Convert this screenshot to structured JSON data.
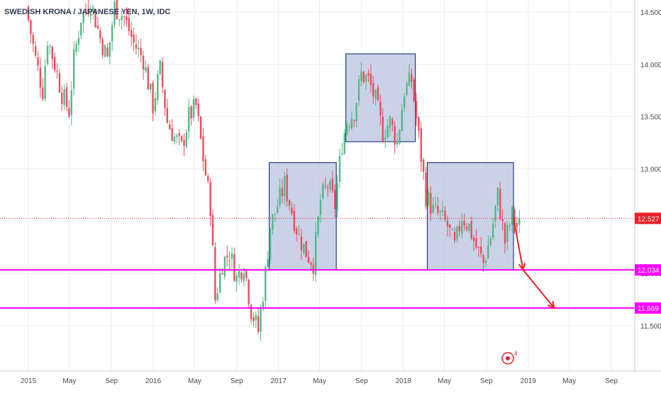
{
  "symbol_title": "SWEDISH KRONA / JAPANESE YEN, 1W, IDC",
  "colors": {
    "up": "#53b987",
    "down": "#eb4d5c",
    "support": "#ff00ff",
    "box_fill": "#b8c3e0",
    "box_stroke": "#2a3f7e",
    "arrow": "#e8202a",
    "grid": "#eaeef3",
    "axis_text": "#4a4a4a",
    "price_line": "#e8202a"
  },
  "chart_data": {
    "type": "candlestick",
    "title": "SWEDISH KRONA / JAPANESE YEN, 1W, IDC",
    "x_axis": {
      "start": "2015-01-01",
      "end": "2019-12-20",
      "tick_labels": [
        {
          "date": "2015-01-01",
          "label": "2015"
        },
        {
          "date": "2015-05-01",
          "label": "May"
        },
        {
          "date": "2015-09-01",
          "label": "Sep"
        },
        {
          "date": "2016-01-01",
          "label": "2016"
        },
        {
          "date": "2016-05-01",
          "label": "May"
        },
        {
          "date": "2016-09-01",
          "label": "Sep"
        },
        {
          "date": "2017-01-01",
          "label": "2017"
        },
        {
          "date": "2017-05-01",
          "label": "May"
        },
        {
          "date": "2017-09-01",
          "label": "Sep"
        },
        {
          "date": "2018-01-01",
          "label": "2018"
        },
        {
          "date": "2018-05-01",
          "label": "May"
        },
        {
          "date": "2018-09-01",
          "label": "Sep"
        },
        {
          "date": "2019-01-01",
          "label": "2019"
        },
        {
          "date": "2019-05-01",
          "label": "May"
        },
        {
          "date": "2019-09-01",
          "label": "Sep"
        }
      ]
    },
    "y_axis": {
      "range": [
        11.14,
        14.6
      ],
      "ticks": [
        "11.500",
        "12.000",
        "12.500",
        "13.000",
        "13.500",
        "14.000",
        "14.500"
      ],
      "tick_values": [
        11.5,
        12.0,
        12.5,
        13.0,
        13.5,
        14.0,
        14.5
      ]
    },
    "grid": true,
    "series": {
      "points": [
        [
          "2014-12-29",
          14.55
        ],
        [
          "2015-01-26",
          14.05
        ],
        [
          "2015-02-16",
          13.75
        ],
        [
          "2015-03-02",
          14.25
        ],
        [
          "2015-03-23",
          14.0
        ],
        [
          "2015-04-13",
          13.72
        ],
        [
          "2015-05-04",
          13.55
        ],
        [
          "2015-05-18",
          14.05
        ],
        [
          "2015-06-08",
          14.45
        ],
        [
          "2015-07-06",
          14.6
        ],
        [
          "2015-08-03",
          14.25
        ],
        [
          "2015-08-24",
          14.05
        ],
        [
          "2015-09-14",
          14.55
        ],
        [
          "2015-10-12",
          14.45
        ],
        [
          "2015-11-09",
          14.2
        ],
        [
          "2015-12-07",
          14.05
        ],
        [
          "2016-01-04",
          13.6
        ],
        [
          "2016-01-25",
          13.95
        ],
        [
          "2016-02-15",
          13.45
        ],
        [
          "2016-03-07",
          13.3
        ],
        [
          "2016-03-28",
          13.2
        ],
        [
          "2016-04-18",
          13.5
        ],
        [
          "2016-05-09",
          13.6
        ],
        [
          "2016-05-30",
          13.1
        ],
        [
          "2016-06-20",
          12.65
        ],
        [
          "2016-07-04",
          11.75
        ],
        [
          "2016-07-25",
          12.1
        ],
        [
          "2016-08-15",
          12.2
        ],
        [
          "2016-09-05",
          11.95
        ],
        [
          "2016-09-26",
          12.1
        ],
        [
          "2016-10-17",
          11.65
        ],
        [
          "2016-11-07",
          11.45
        ],
        [
          "2016-11-28",
          12.0
        ],
        [
          "2016-12-12",
          12.45
        ],
        [
          "2017-01-02",
          12.65
        ],
        [
          "2017-01-23",
          12.85
        ],
        [
          "2017-02-13",
          12.6
        ],
        [
          "2017-03-06",
          12.35
        ],
        [
          "2017-03-27",
          12.2
        ],
        [
          "2017-04-17",
          12.1
        ],
        [
          "2017-05-08",
          12.7
        ],
        [
          "2017-05-29",
          12.85
        ],
        [
          "2017-06-19",
          12.65
        ],
        [
          "2017-07-10",
          13.25
        ],
        [
          "2017-07-24",
          13.45
        ],
        [
          "2017-08-14",
          13.55
        ],
        [
          "2017-09-04",
          13.9
        ],
        [
          "2017-09-25",
          13.85
        ],
        [
          "2017-10-16",
          13.65
        ],
        [
          "2017-11-06",
          13.35
        ],
        [
          "2017-11-27",
          13.45
        ],
        [
          "2017-12-18",
          13.25
        ],
        [
          "2018-01-08",
          13.75
        ],
        [
          "2018-01-29",
          13.85
        ],
        [
          "2018-02-19",
          13.3
        ],
        [
          "2018-03-12",
          12.75
        ],
        [
          "2018-04-02",
          12.6
        ],
        [
          "2018-04-23",
          12.55
        ],
        [
          "2018-05-14",
          12.45
        ],
        [
          "2018-06-04",
          12.25
        ],
        [
          "2018-06-25",
          12.55
        ],
        [
          "2018-07-16",
          12.45
        ],
        [
          "2018-08-06",
          12.25
        ],
        [
          "2018-08-27",
          12.1
        ],
        [
          "2018-09-17",
          12.35
        ],
        [
          "2018-10-08",
          12.75
        ],
        [
          "2018-10-29",
          12.3
        ],
        [
          "2018-11-19",
          12.55
        ],
        [
          "2018-12-03",
          12.45
        ]
      ]
    },
    "annotations": {
      "current_price": 12.527,
      "current_price_label": "12.527",
      "support_levels": [
        {
          "value": 12.034,
          "label": "12.034"
        },
        {
          "value": 11.669,
          "label": "11.669"
        }
      ],
      "boxes": [
        {
          "from": "2016-12-05",
          "to": "2017-06-19",
          "low": 12.034,
          "high": 13.06
        },
        {
          "from": "2017-07-17",
          "to": "2018-02-05",
          "low": 13.26,
          "high": 14.1
        },
        {
          "from": "2018-03-12",
          "to": "2018-11-19",
          "low": 12.034,
          "high": 13.06
        }
      ],
      "arrows": [
        {
          "from": [
            "2018-11-19",
            12.527
          ],
          "to": [
            "2018-12-17",
            12.034
          ]
        },
        {
          "from": [
            "2018-12-17",
            12.034
          ],
          "to": [
            "2019-03-18",
            11.669
          ]
        }
      ]
    }
  }
}
